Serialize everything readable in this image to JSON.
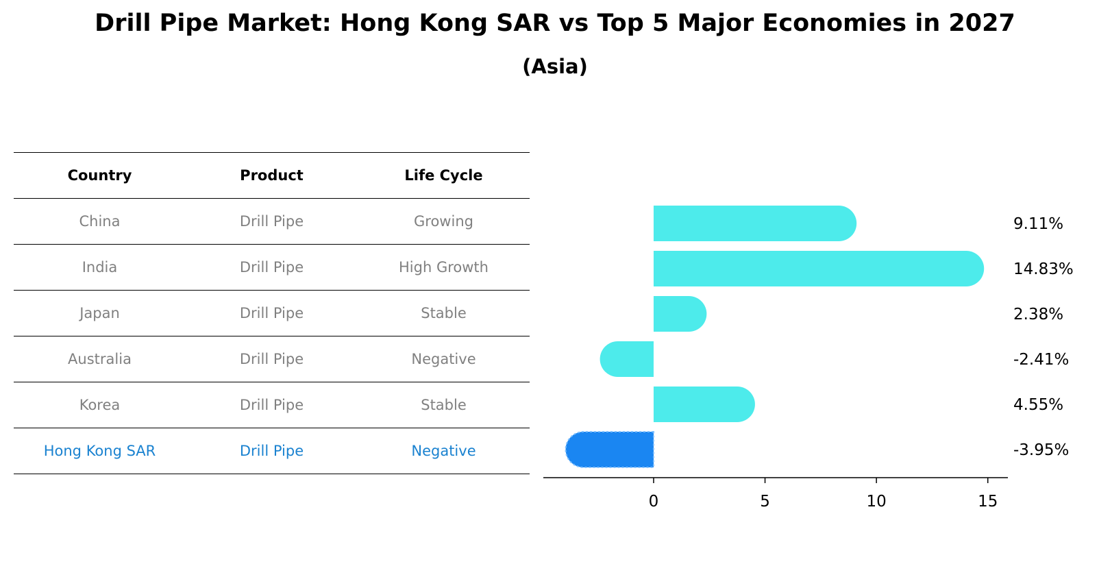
{
  "title": "Drill Pipe Market: Hong Kong SAR vs Top 5 Major Economies in 2027",
  "subtitle": "(Asia)",
  "table": {
    "headers": [
      "Country",
      "Product",
      "Life Cycle"
    ],
    "rows": [
      {
        "country": "China",
        "product": "Drill Pipe",
        "life_cycle": "Growing"
      },
      {
        "country": "India",
        "product": "Drill Pipe",
        "life_cycle": "High Growth"
      },
      {
        "country": "Japan",
        "product": "Drill Pipe",
        "life_cycle": "Stable"
      },
      {
        "country": "Australia",
        "product": "Drill Pipe",
        "life_cycle": "Negative"
      },
      {
        "country": "Korea",
        "product": "Drill Pipe",
        "life_cycle": "Stable"
      },
      {
        "country": "Hong Kong SAR",
        "product": "Drill Pipe",
        "life_cycle": "Negative"
      }
    ]
  },
  "colors": {
    "bar": "#4debeb",
    "highlight_bar": "#1a86f2",
    "highlight_text": "#1a82d0",
    "muted_text": "#808080"
  },
  "chart_data": {
    "type": "bar",
    "orientation": "horizontal",
    "categories": [
      "China",
      "India",
      "Japan",
      "Australia",
      "Korea",
      "Hong Kong SAR"
    ],
    "values": [
      9.11,
      14.83,
      2.38,
      -2.41,
      4.55,
      -3.95
    ],
    "value_labels": [
      "9.11%",
      "14.83%",
      "2.38%",
      "-2.41%",
      "4.55%",
      "-3.95%"
    ],
    "highlight_index": 5,
    "xlim": [
      -4.95,
      15.9
    ],
    "xticks": [
      0,
      5,
      10,
      15
    ],
    "xtick_labels": [
      "0",
      "5",
      "10",
      "15"
    ],
    "title": "",
    "xlabel": "",
    "ylabel": "",
    "grid": false
  }
}
